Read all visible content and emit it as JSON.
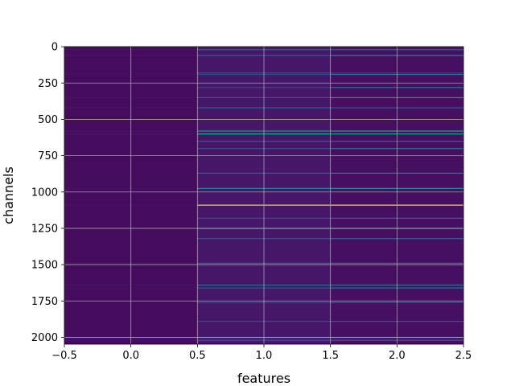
{
  "chart_data": {
    "type": "heatmap",
    "title": "",
    "xlabel": "features",
    "ylabel": "channels",
    "colormap": "viridis",
    "grid": true,
    "xlim": [
      -0.5,
      2.5
    ],
    "ylim": [
      2047.5,
      -0.5
    ],
    "x_ticks": [
      -0.5,
      0.0,
      0.5,
      1.0,
      1.5,
      2.0,
      2.5
    ],
    "x_tick_labels": [
      "−0.5",
      "0.0",
      "0.5",
      "1.0",
      "1.5",
      "2.0",
      "2.5"
    ],
    "y_ticks": [
      0,
      250,
      500,
      750,
      1000,
      1250,
      1500,
      1750,
      2000
    ],
    "y_tick_labels": [
      "0",
      "250",
      "500",
      "750",
      "1000",
      "1250",
      "1500",
      "1750",
      "2000"
    ],
    "columns": [
      0,
      1,
      2
    ],
    "n_channels": 2048,
    "base_values": [
      0.03,
      0.06,
      0.04
    ],
    "notable_channels": [
      {
        "channel": 20,
        "values": [
          0.05,
          0.28,
          0.3
        ]
      },
      {
        "channel": 60,
        "values": [
          0.05,
          0.3,
          0.45
        ]
      },
      {
        "channel": 180,
        "values": [
          0.04,
          0.22,
          0.18
        ]
      },
      {
        "channel": 190,
        "values": [
          0.04,
          0.2,
          0.4
        ]
      },
      {
        "channel": 280,
        "values": [
          0.04,
          0.22,
          0.35
        ]
      },
      {
        "channel": 350,
        "values": [
          0.05,
          0.25,
          0.5
        ]
      },
      {
        "channel": 420,
        "values": [
          0.05,
          0.3,
          0.25
        ]
      },
      {
        "channel": 580,
        "values": [
          0.05,
          0.55,
          0.6
        ]
      },
      {
        "channel": 600,
        "values": [
          0.05,
          0.62,
          0.58
        ]
      },
      {
        "channel": 650,
        "values": [
          0.04,
          0.28,
          0.3
        ]
      },
      {
        "channel": 700,
        "values": [
          0.04,
          0.25,
          0.35
        ]
      },
      {
        "channel": 870,
        "values": [
          0.04,
          0.28,
          0.4
        ]
      },
      {
        "channel": 975,
        "values": [
          0.05,
          0.5,
          0.52
        ]
      },
      {
        "channel": 1090,
        "values": [
          0.05,
          0.95,
          0.97
        ]
      },
      {
        "channel": 1180,
        "values": [
          0.04,
          0.22,
          0.3
        ]
      },
      {
        "channel": 1250,
        "values": [
          0.05,
          0.45,
          0.48
        ]
      },
      {
        "channel": 1320,
        "values": [
          0.04,
          0.25,
          0.3
        ]
      },
      {
        "channel": 1490,
        "values": [
          0.05,
          0.3,
          0.33
        ]
      },
      {
        "channel": 1640,
        "values": [
          0.05,
          0.35,
          0.4
        ]
      },
      {
        "channel": 1660,
        "values": [
          0.04,
          0.25,
          0.35
        ]
      },
      {
        "channel": 1760,
        "values": [
          0.04,
          0.22,
          0.28
        ]
      },
      {
        "channel": 1890,
        "values": [
          0.04,
          0.22,
          0.25
        ]
      },
      {
        "channel": 2000,
        "values": [
          0.1,
          0.4,
          0.45
        ]
      },
      {
        "channel": 2020,
        "values": [
          0.05,
          0.28,
          0.3
        ]
      }
    ]
  }
}
